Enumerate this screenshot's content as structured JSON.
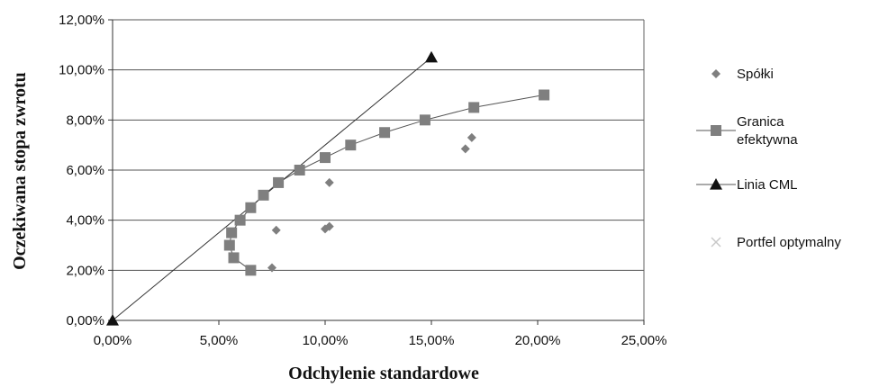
{
  "chart_data": {
    "type": "scatter",
    "xlabel": "Odchylenie standardowe",
    "ylabel": "Oczekiwana stopa zwrotu",
    "xlim": [
      0,
      0.25
    ],
    "ylim": [
      0,
      0.12
    ],
    "xticks": [
      0,
      0.05,
      0.1,
      0.15,
      0.2,
      0.25
    ],
    "xtick_labels": [
      "0,00%",
      "5,00%",
      "10,00%",
      "15,00%",
      "20,00%",
      "25,00%"
    ],
    "yticks": [
      0,
      0.02,
      0.04,
      0.06,
      0.08,
      0.1,
      0.12
    ],
    "ytick_labels": [
      "0,00%",
      "2,00%",
      "4,00%",
      "6,00%",
      "8,00%",
      "10,00%",
      "12,00%"
    ],
    "grid": "horizontal",
    "legend_position": "right",
    "series": [
      {
        "name": "Spółki",
        "marker": "diamond",
        "line": false,
        "color": "#7f7f7f",
        "points": [
          {
            "x": 0.075,
            "y": 0.021
          },
          {
            "x": 0.077,
            "y": 0.036
          },
          {
            "x": 0.1,
            "y": 0.0365
          },
          {
            "x": 0.102,
            "y": 0.0375
          },
          {
            "x": 0.102,
            "y": 0.055
          },
          {
            "x": 0.166,
            "y": 0.0685
          },
          {
            "x": 0.169,
            "y": 0.073
          }
        ]
      },
      {
        "name": "Granica efektywna",
        "name_lines": [
          "Granica",
          "efektywna"
        ],
        "marker": "square",
        "line": true,
        "color": "#7f7f7f",
        "points": [
          {
            "x": 0.065,
            "y": 0.02
          },
          {
            "x": 0.057,
            "y": 0.025
          },
          {
            "x": 0.055,
            "y": 0.03
          },
          {
            "x": 0.056,
            "y": 0.035
          },
          {
            "x": 0.06,
            "y": 0.04
          },
          {
            "x": 0.065,
            "y": 0.045
          },
          {
            "x": 0.071,
            "y": 0.05
          },
          {
            "x": 0.078,
            "y": 0.055
          },
          {
            "x": 0.088,
            "y": 0.06
          },
          {
            "x": 0.1,
            "y": 0.065
          },
          {
            "x": 0.112,
            "y": 0.07
          },
          {
            "x": 0.128,
            "y": 0.075
          },
          {
            "x": 0.147,
            "y": 0.08
          },
          {
            "x": 0.17,
            "y": 0.085
          },
          {
            "x": 0.203,
            "y": 0.09
          }
        ]
      },
      {
        "name": "Linia CML",
        "marker": "triangle",
        "line": true,
        "color": "#111111",
        "points": [
          {
            "x": 0,
            "y": 0
          },
          {
            "x": 0.15,
            "y": 0.105
          }
        ]
      },
      {
        "name": "Portfel optymalny",
        "marker": "x",
        "line": false,
        "color": "#c8c8c8",
        "points": []
      }
    ]
  }
}
